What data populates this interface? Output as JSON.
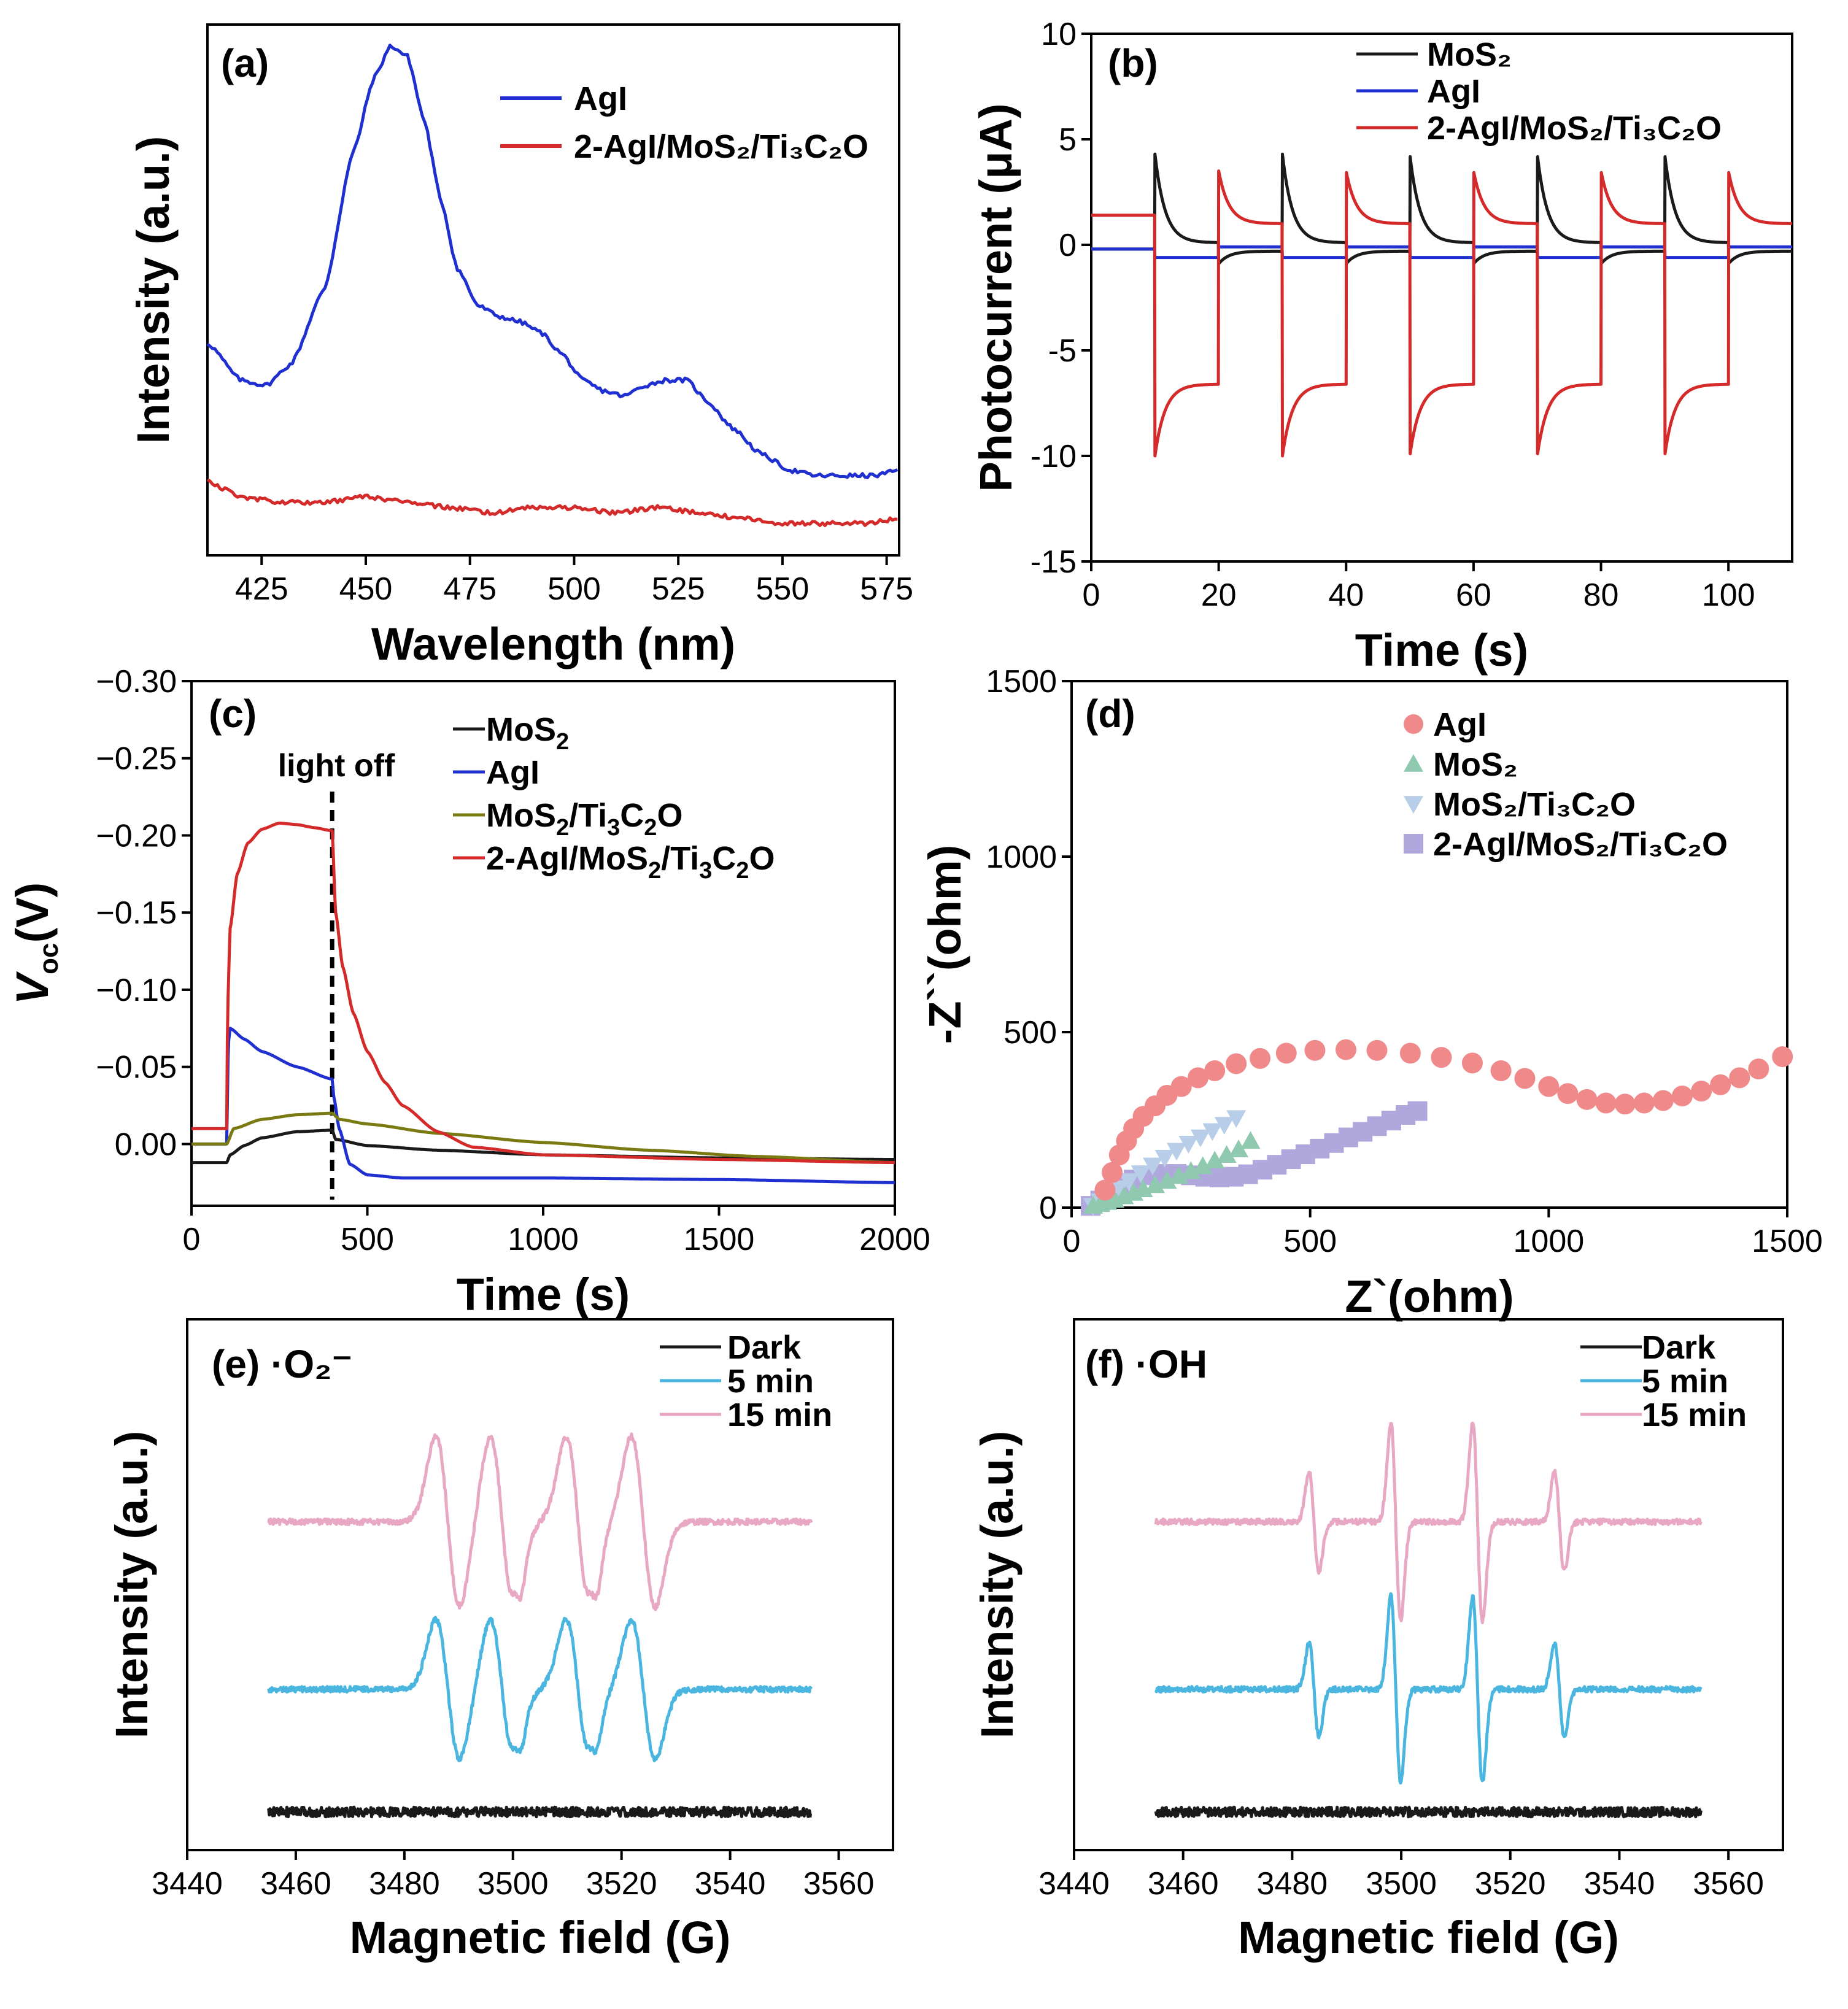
{
  "chart_data": [
    {
      "panel": "(a)",
      "type": "line",
      "xlabel": "Wavelength (nm)",
      "ylabel": "Intensity (a.u.)",
      "xlim": [
        412,
        578
      ],
      "ylim": [
        0,
        100
      ],
      "xticks": [
        425,
        450,
        475,
        500,
        525,
        550,
        575
      ],
      "yticks": [],
      "series": [
        {
          "name": "AgI",
          "color": "#1f2fd0",
          "x": [
            412,
            420,
            426,
            432,
            440,
            447,
            452,
            456,
            460,
            464,
            468,
            472,
            477,
            482,
            487,
            492,
            497,
            502,
            507,
            512,
            517,
            522,
            527,
            532,
            538,
            545,
            552,
            558,
            565,
            572,
            578
          ],
          "y": [
            40,
            33,
            32,
            36,
            50,
            76,
            90,
            96,
            94,
            82,
            67,
            54,
            47,
            45,
            44,
            42,
            38,
            33,
            31,
            30,
            32,
            33,
            33,
            29,
            24,
            19,
            16,
            15,
            15,
            15,
            16
          ]
        },
        {
          "name": "2-AgI/MoS₂/Ti₃C₂O",
          "color": "#d42a2a",
          "x": [
            412,
            420,
            430,
            440,
            450,
            460,
            470,
            480,
            490,
            500,
            510,
            520,
            530,
            540,
            550,
            560,
            570,
            578
          ],
          "y": [
            14,
            11,
            10,
            10,
            11,
            10,
            9,
            8,
            9,
            9,
            8,
            9,
            8,
            7,
            6,
            6,
            6,
            7
          ]
        }
      ]
    },
    {
      "panel": "(b)",
      "type": "line",
      "xlabel": "Time (s)",
      "ylabel": "Photocurrent (μA)",
      "xlim": [
        0,
        110
      ],
      "ylim": [
        -15,
        10
      ],
      "xticks": [
        0,
        20,
        40,
        60,
        80,
        100
      ],
      "yticks": [
        -15,
        -10,
        -5,
        0,
        5,
        10
      ],
      "on_off_period_s": 10,
      "series": [
        {
          "name": "MoS₂",
          "color": "#1a1a1a",
          "baseline": -0.2,
          "on_spike": 4.3,
          "on_plateau": 0.1,
          "off_spike": -0.9,
          "off_plateau": -0.3
        },
        {
          "name": "AgI",
          "color": "#1f2fd0",
          "baseline": -0.2,
          "on_spike": -0.6,
          "on_plateau": -0.6,
          "off_spike": -0.1,
          "off_plateau": -0.1
        },
        {
          "name": "2-AgI/MoS₂/Ti₃C₂O",
          "color": "#d42a2a",
          "baseline": 1.4,
          "on_spike": -10.0,
          "on_plateau": -6.6,
          "off_spike": 3.5,
          "off_plateau": 1.0
        }
      ]
    },
    {
      "panel": "(c)",
      "type": "line",
      "xlabel": "Time (s)",
      "ylabel": "V",
      "ylabel_sub": "oc",
      "ylabel_unit": "(V)",
      "xlim": [
        0,
        2000
      ],
      "ylim": [
        0.04,
        -0.3
      ],
      "xticks": [
        0,
        500,
        1000,
        1500,
        2000
      ],
      "yticks": [
        0.0,
        -0.05,
        -0.1,
        -0.15,
        -0.2,
        -0.25,
        -0.3
      ],
      "ytick_labels": [
        "0.00",
        "−0.05",
        "−0.10",
        "−0.15",
        "−0.20",
        "−0.25",
        "−0.30"
      ],
      "annotation": {
        "text": "light off",
        "x": 400
      },
      "series": [
        {
          "name": "MoS",
          "sub": "2",
          "color": "#1a1a1a",
          "x": [
            0,
            100,
            110,
            150,
            200,
            300,
            400,
            410,
            500,
            700,
            1000,
            1500,
            2000
          ],
          "y": [
            0.012,
            0.012,
            0.007,
            0.001,
            -0.004,
            -0.008,
            -0.009,
            -0.003,
            0.001,
            0.004,
            0.007,
            0.009,
            0.01
          ]
        },
        {
          "name": "AgI",
          "color": "#1f2fd0",
          "x": [
            0,
            100,
            105,
            110,
            150,
            200,
            300,
            400,
            405,
            420,
            450,
            500,
            600,
            800,
            1000,
            1500,
            2000
          ],
          "y": [
            0.0,
            0.0,
            -0.066,
            -0.075,
            -0.068,
            -0.06,
            -0.05,
            -0.042,
            -0.03,
            -0.01,
            0.013,
            0.02,
            0.022,
            0.022,
            0.022,
            0.023,
            0.025
          ]
        },
        {
          "name": "MoS",
          "sub": "2",
          "name2": "/Ti",
          "sub2": "3",
          "name3": "C",
          "sub3": "2",
          "name4": "O",
          "color": "#7a7a12",
          "x": [
            0,
            100,
            120,
            200,
            300,
            400,
            420,
            500,
            700,
            1000,
            1300,
            1600,
            2000
          ],
          "y": [
            0.0,
            0.0,
            -0.01,
            -0.016,
            -0.019,
            -0.02,
            -0.016,
            -0.013,
            -0.007,
            -0.001,
            0.004,
            0.008,
            0.012
          ]
        },
        {
          "name": "2-AgI/MoS",
          "sub": "2",
          "name2": "/Ti",
          "sub2": "3",
          "name3": "C",
          "sub3": "2",
          "name4": "O",
          "color": "#d42a2a",
          "x": [
            0,
            100,
            103,
            110,
            130,
            160,
            200,
            250,
            300,
            350,
            400,
            410,
            430,
            460,
            500,
            550,
            600,
            700,
            800,
            1000,
            1500,
            2000
          ],
          "y": [
            -0.01,
            -0.01,
            -0.09,
            -0.14,
            -0.175,
            -0.195,
            -0.204,
            -0.208,
            -0.207,
            -0.205,
            -0.203,
            -0.15,
            -0.115,
            -0.085,
            -0.06,
            -0.04,
            -0.025,
            -0.008,
            0.002,
            0.007,
            0.01,
            0.012
          ]
        }
      ]
    },
    {
      "panel": "(d)",
      "type": "scatter",
      "xlabel": "Z`(ohm)",
      "ylabel": "-Z``(ohm)",
      "xlim": [
        0,
        1500
      ],
      "ylim": [
        0,
        1500
      ],
      "xticks": [
        0,
        500,
        1000,
        1500
      ],
      "yticks": [
        0,
        500,
        1000,
        1500
      ],
      "series": [
        {
          "name": "AgI",
          "marker": "circle",
          "color": "#f08a8a",
          "x": [
            70,
            85,
            100,
            115,
            130,
            150,
            175,
            200,
            230,
            265,
            300,
            345,
            395,
            450,
            510,
            575,
            640,
            710,
            775,
            840,
            900,
            950,
            1000,
            1040,
            1080,
            1120,
            1160,
            1200,
            1240,
            1280,
            1320,
            1360,
            1400,
            1440,
            1490
          ],
          "y": [
            50,
            100,
            150,
            190,
            225,
            260,
            290,
            320,
            345,
            370,
            390,
            410,
            425,
            440,
            448,
            450,
            448,
            440,
            428,
            412,
            390,
            368,
            345,
            325,
            308,
            298,
            295,
            298,
            305,
            318,
            332,
            350,
            370,
            395,
            430
          ]
        },
        {
          "name": "MoS₂",
          "marker": "triangle-up",
          "color": "#8ec9b0",
          "x": [
            45,
            60,
            75,
            90,
            110,
            130,
            150,
            175,
            200,
            225,
            250,
            275,
            300,
            325,
            350,
            375
          ],
          "y": [
            5,
            10,
            16,
            22,
            32,
            42,
            52,
            64,
            76,
            90,
            104,
            118,
            134,
            150,
            166,
            190
          ]
        },
        {
          "name": "MoS₂/Ti₃C₂O",
          "marker": "triangle-down",
          "color": "#b8cde8",
          "x": [
            45,
            60,
            80,
            100,
            120,
            145,
            170,
            195,
            220,
            245,
            270,
            295,
            320,
            345
          ],
          "y": [
            5,
            18,
            35,
            55,
            75,
            98,
            120,
            142,
            162,
            182,
            200,
            218,
            236,
            255
          ]
        },
        {
          "name": "2-AgI/MoS₂/Ti₃C₂O",
          "marker": "square",
          "color": "#b0a8dc",
          "x": [
            40,
            60,
            80,
            100,
            130,
            160,
            190,
            220,
            250,
            280,
            310,
            340,
            370,
            400,
            430,
            460,
            490,
            520,
            550,
            580,
            610,
            640,
            670,
            700,
            725
          ],
          "y": [
            5,
            20,
            40,
            60,
            80,
            92,
            96,
            96,
            92,
            88,
            86,
            88,
            95,
            108,
            122,
            138,
            152,
            168,
            184,
            200,
            216,
            232,
            248,
            264,
            275
          ]
        }
      ]
    },
    {
      "panel": "(e)",
      "panel_title": "·O₂⁻",
      "type": "line",
      "xlabel": "Magnetic field (G)",
      "ylabel": "Intensity (a.u.)",
      "xlim": [
        3440,
        3570
      ],
      "xticks": [
        3440,
        3460,
        3480,
        3500,
        3520,
        3540,
        3560
      ],
      "series": [
        {
          "name": "Dark",
          "color": "#1a1a1a",
          "offset": 0.0,
          "peaks": []
        },
        {
          "name": "5 min",
          "color": "#4ab6e0",
          "offset": 1.0,
          "peaks": [
            3488,
            3498,
            3512,
            3524
          ],
          "small_peaks": [
            3501,
            3515
          ],
          "amp": 0.45,
          "width": 2.2
        },
        {
          "name": "15 min",
          "color": "#e8a8c4",
          "offset": 2.0,
          "peaks": [
            3488,
            3498,
            3512,
            3524
          ],
          "small_peaks": [
            3501,
            3515
          ],
          "amp": 0.55,
          "width": 2.2
        }
      ]
    },
    {
      "panel": "(f)",
      "panel_title": "·OH",
      "type": "line",
      "xlabel": "Magnetic field (G)",
      "ylabel": "Intensity (a.u.)",
      "xlim": [
        3440,
        3570
      ],
      "xticks": [
        3440,
        3460,
        3480,
        3500,
        3520,
        3540,
        3560
      ],
      "series": [
        {
          "name": "Dark",
          "color": "#1a1a1a",
          "offset": 0.0,
          "peaks": []
        },
        {
          "name": "5 min",
          "color": "#4ab6e0",
          "offset": 1.0,
          "peaks": [
            3484,
            3499,
            3514,
            3529
          ],
          "ratios": [
            1,
            2,
            2,
            1
          ],
          "amp": 0.3,
          "width": 0.9
        },
        {
          "name": "15 min",
          "color": "#e8a8c4",
          "offset": 2.0,
          "peaks": [
            3484,
            3499,
            3514,
            3529
          ],
          "ratios": [
            1,
            2,
            2,
            1
          ],
          "amp": 0.32,
          "width": 0.9
        }
      ]
    }
  ]
}
